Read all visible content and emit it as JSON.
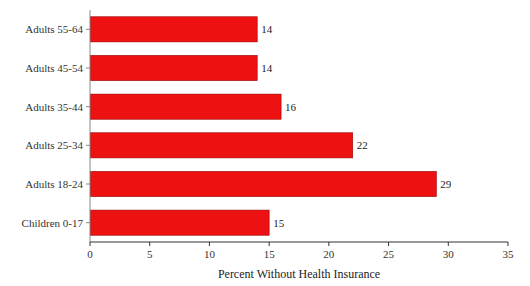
{
  "chart_data": {
    "type": "bar",
    "orientation": "horizontal",
    "categories": [
      "Adults 55-64",
      "Adults 45-54",
      "Adults 35-44",
      "Adults 25-34",
      "Adults 18-24",
      "Children 0-17"
    ],
    "values": [
      14,
      14,
      16,
      22,
      29,
      15
    ],
    "color": "#ee1111",
    "xlabel": "Percent Without Health Insurance",
    "xlim": [
      0,
      35
    ],
    "xticks": [
      0,
      5,
      10,
      15,
      20,
      25,
      30,
      35
    ],
    "grid": false,
    "data_labels": true
  }
}
